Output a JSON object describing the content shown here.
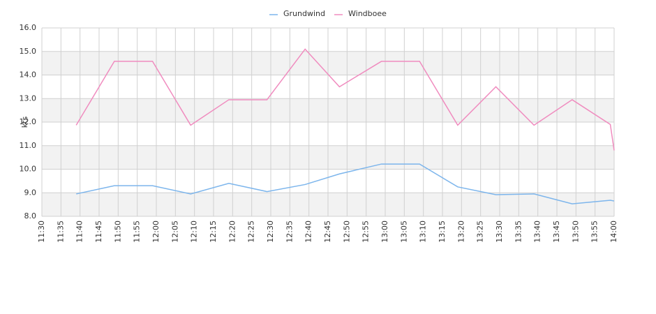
{
  "chart_data": {
    "type": "line",
    "y_label": "kts",
    "x": [
      "11:39",
      "11:49",
      "11:59",
      "12:09",
      "12:19",
      "12:29",
      "12:39",
      "12:48",
      "12:59",
      "13:09",
      "13:19",
      "13:29",
      "13:39",
      "13:49",
      "13:59",
      "14:00"
    ],
    "series": [
      {
        "name": "Grundwind",
        "color": "#7cb5ec",
        "values": [
          8.95,
          9.3,
          9.3,
          8.95,
          9.4,
          9.05,
          9.35,
          9.8,
          10.22,
          10.22,
          9.25,
          8.92,
          8.95,
          8.53,
          8.68,
          8.65
        ]
      },
      {
        "name": "Windboee",
        "color": "#f08cbf",
        "values": [
          11.87,
          14.58,
          14.58,
          11.87,
          12.95,
          12.95,
          15.1,
          13.5,
          14.58,
          14.58,
          11.87,
          13.5,
          11.87,
          12.95,
          11.9,
          10.8
        ]
      }
    ],
    "xlim": [
      "11:30",
      "14:00"
    ],
    "xticks": [
      "11:30",
      "11:35",
      "11:40",
      "11:45",
      "11:50",
      "11:55",
      "12:00",
      "12:05",
      "12:10",
      "12:15",
      "12:20",
      "12:25",
      "12:30",
      "12:35",
      "12:40",
      "12:45",
      "12:50",
      "12:55",
      "13:00",
      "13:05",
      "13:10",
      "13:15",
      "13:20",
      "13:25",
      "13:30",
      "13:35",
      "13:40",
      "13:45",
      "13:50",
      "13:55",
      "14:00"
    ],
    "ylim": [
      8,
      16
    ],
    "yticks": [
      {
        "value": 8,
        "label": "8.0"
      },
      {
        "value": 9,
        "label": "9.0"
      },
      {
        "value": 10,
        "label": "10.0"
      },
      {
        "value": 11,
        "label": "11.0"
      },
      {
        "value": 12,
        "label": "12.0"
      },
      {
        "value": 13,
        "label": "13.0"
      },
      {
        "value": 14,
        "label": "14.0"
      },
      {
        "value": 15,
        "label": "15.0"
      },
      {
        "value": 16,
        "label": "16.0"
      }
    ],
    "grid": true,
    "legend": "top"
  }
}
